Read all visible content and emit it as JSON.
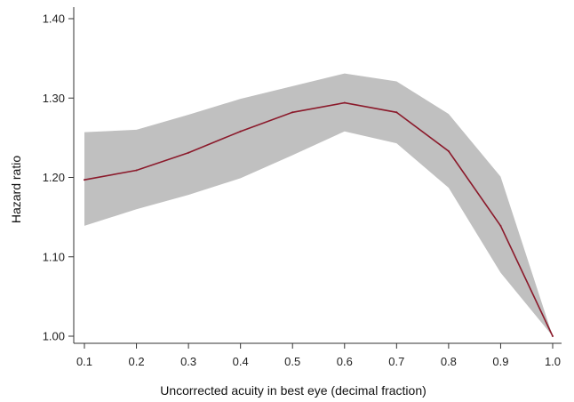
{
  "chart_data": {
    "type": "line",
    "title": "",
    "xlabel": "Uncorrected acuity in best eye (decimal fraction)",
    "ylabel": "Hazard ratio",
    "xlim": [
      0.1,
      1.0
    ],
    "ylim": [
      1.0,
      1.4
    ],
    "x_ticks": [
      "0.1",
      "0.2",
      "0.3",
      "0.4",
      "0.5",
      "0.6",
      "0.7",
      "0.8",
      "0.9",
      "1.0"
    ],
    "y_ticks": [
      "1.00",
      "1.10",
      "1.20",
      "1.30",
      "1.40"
    ],
    "grid": false,
    "x": [
      0.1,
      0.2,
      0.3,
      0.4,
      0.5,
      0.6,
      0.7,
      0.8,
      0.9,
      1.0
    ],
    "series": [
      {
        "values": [
          1.197,
          1.209,
          1.231,
          1.258,
          1.282,
          1.294,
          1.282,
          1.233,
          1.139,
          1.0
        ],
        "lower": [
          1.139,
          1.16,
          1.178,
          1.199,
          1.228,
          1.258,
          1.243,
          1.187,
          1.08,
          1.0
        ],
        "upper": [
          1.257,
          1.26,
          1.279,
          1.299,
          1.315,
          1.331,
          1.321,
          1.28,
          1.201,
          1.0
        ],
        "color": "#8b1a2b",
        "band_color": "#c0c0c0"
      }
    ]
  }
}
